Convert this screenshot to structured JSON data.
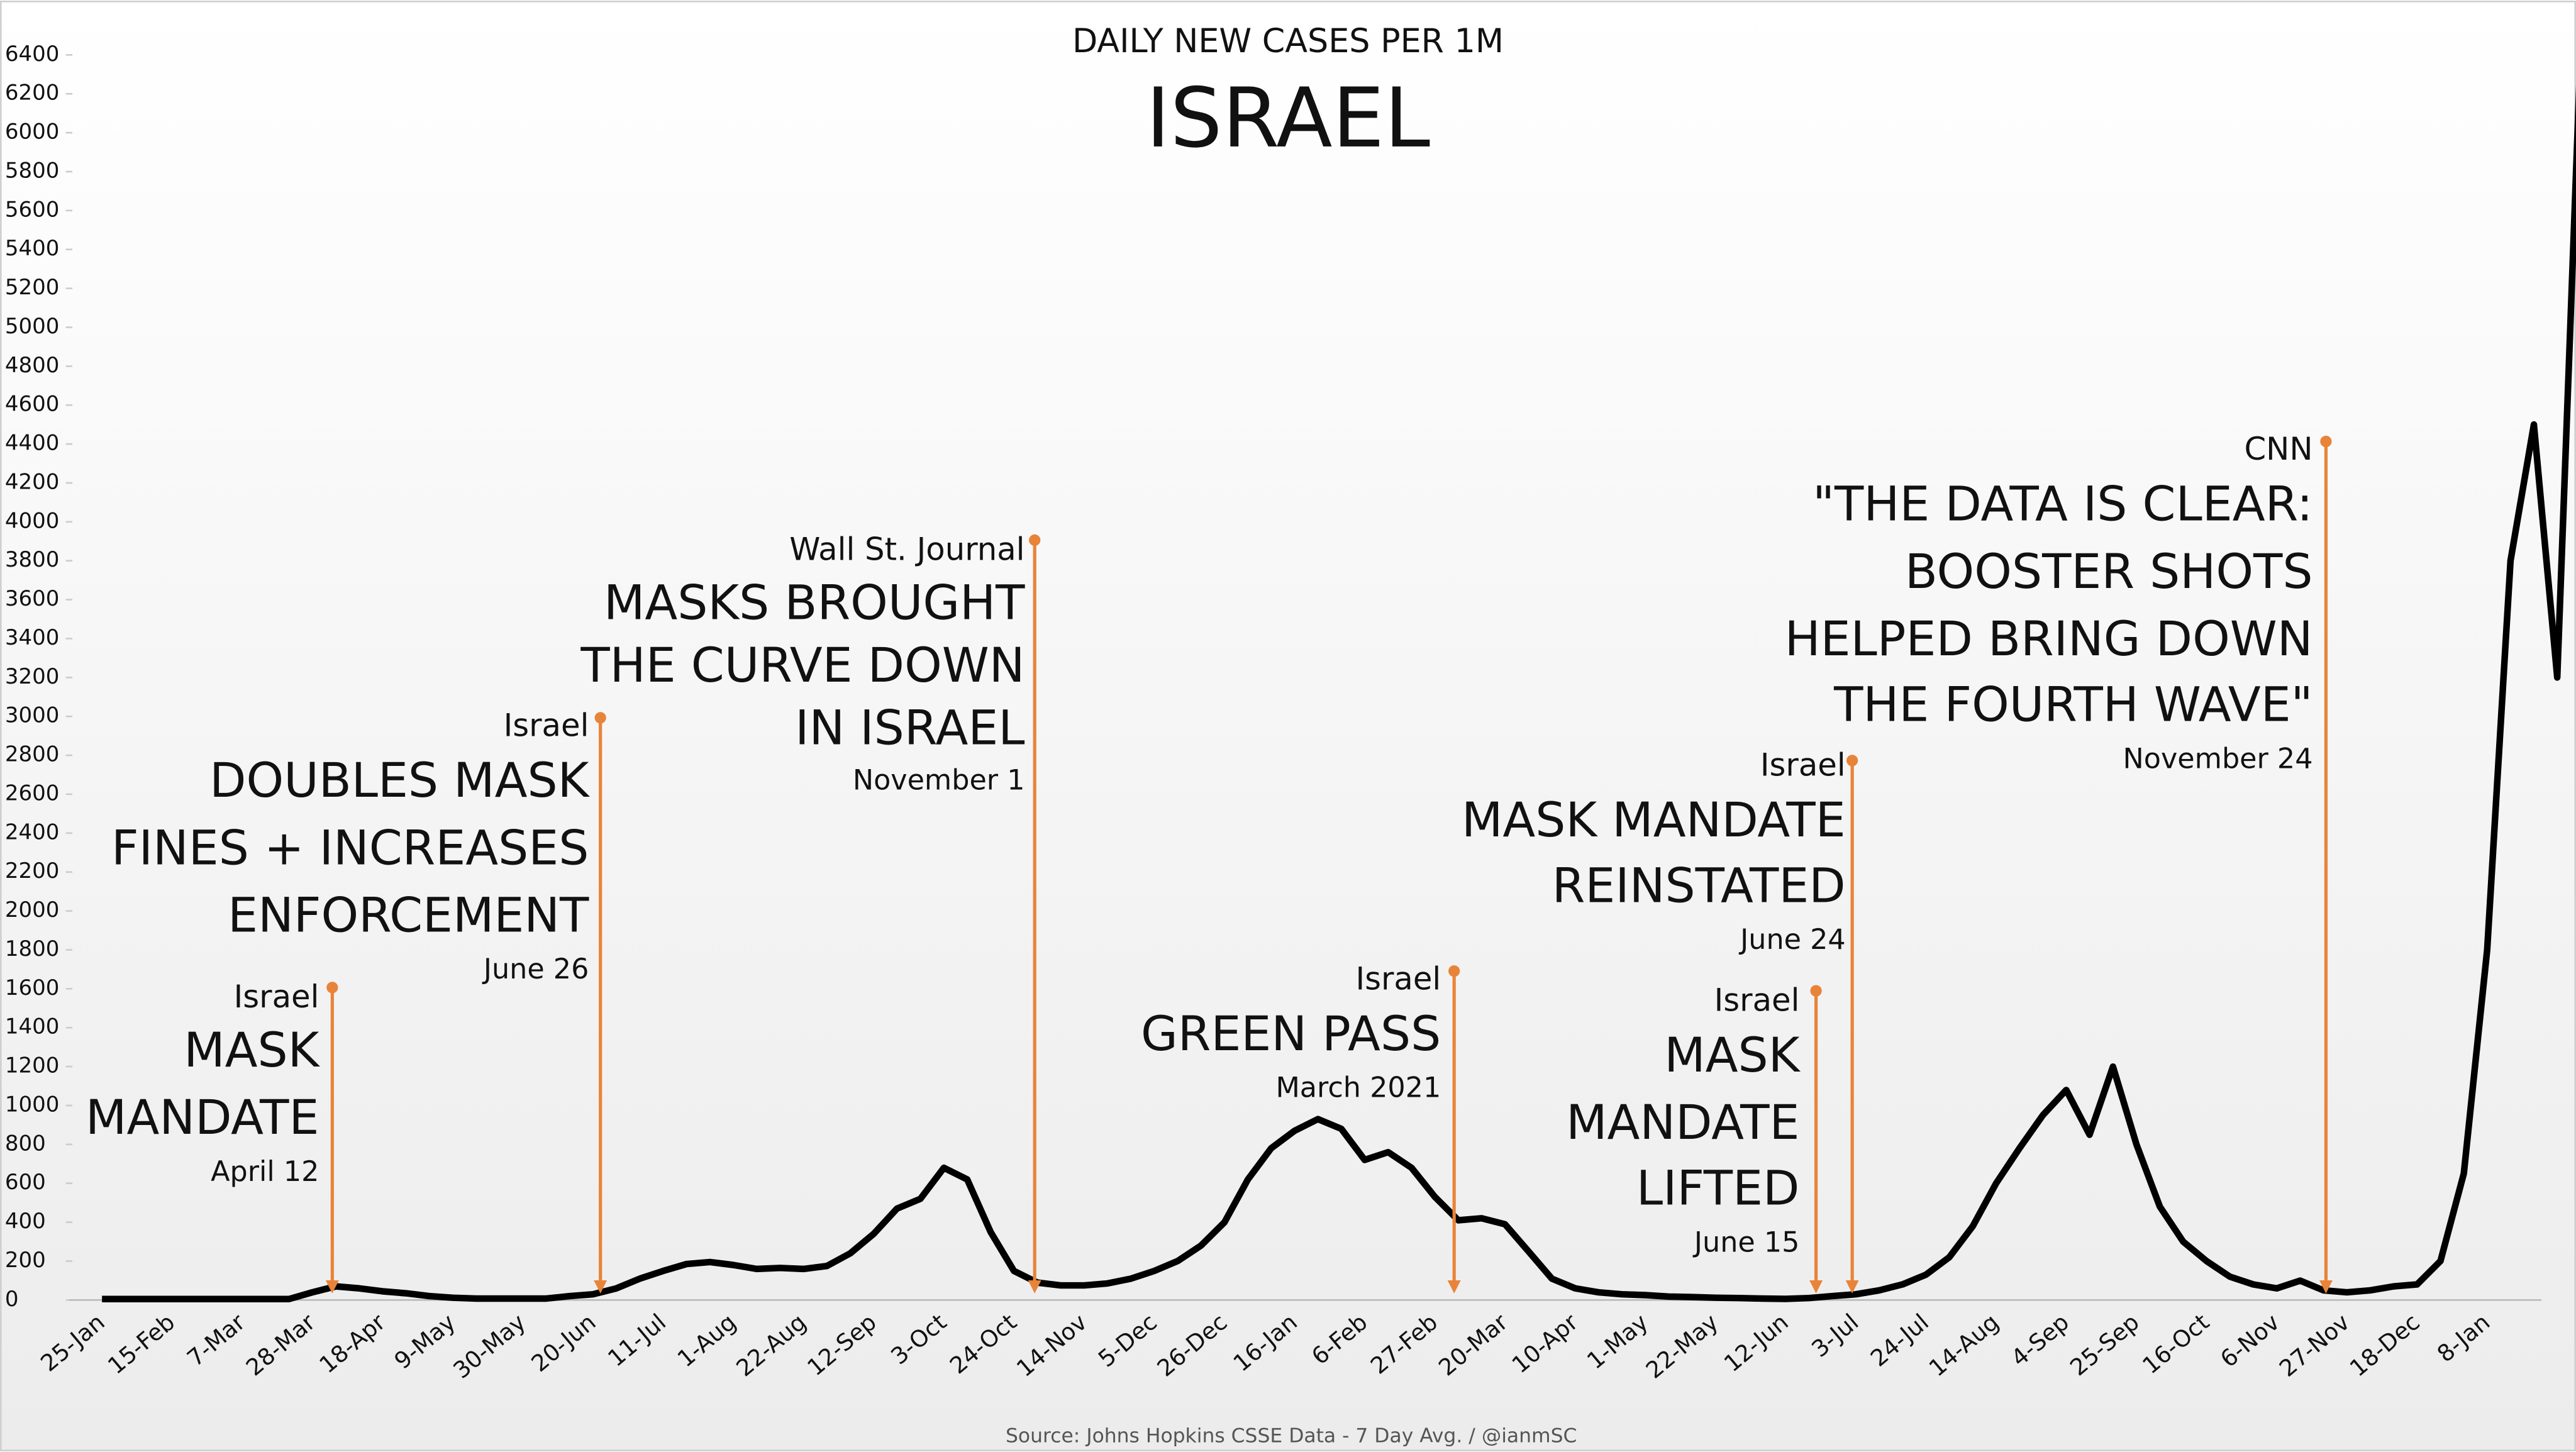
{
  "chart_data": {
    "type": "line",
    "title": "DAILY NEW CASES PER 1M",
    "subtitle": "ISRAEL",
    "source": "Source: Johns Hopkins CSSE Data - 7 Day Avg. / @ianmSC",
    "categories": [
      "25-Jan",
      null,
      null,
      "15-Feb",
      null,
      null,
      "7-Mar",
      null,
      null,
      "28-Mar",
      null,
      null,
      "18-Apr",
      null,
      null,
      "9-May",
      null,
      null,
      "30-May",
      null,
      null,
      "20-Jun",
      null,
      null,
      "11-Jul",
      null,
      null,
      "1-Aug",
      null,
      null,
      "22-Aug",
      null,
      null,
      "12-Sep",
      null,
      null,
      "3-Oct",
      null,
      null,
      "24-Oct",
      null,
      null,
      "14-Nov",
      null,
      null,
      "5-Dec",
      null,
      null,
      "26-Dec",
      null,
      null,
      "16-Jan",
      null,
      null,
      "6-Feb",
      null,
      null,
      "27-Feb",
      null,
      null,
      "20-Mar",
      null,
      null,
      "10-Apr",
      null,
      null,
      "1-May",
      null,
      null,
      "22-May",
      null,
      null,
      "12-Jun",
      null,
      null,
      "3-Jul",
      null,
      null,
      "24-Jul",
      null,
      null,
      "14-Aug",
      null,
      null,
      "4-Sep",
      null,
      null,
      "25-Sep",
      null,
      null,
      "16-Oct",
      null,
      null,
      "6-Nov",
      null,
      null,
      "27-Nov",
      null,
      null,
      "18-Dec",
      null,
      null,
      "8-Jan",
      null,
      null,
      null,
      null
    ],
    "series": [
      {
        "name": "Daily new cases per 1M",
        "color": "#000000",
        "values": [
          5,
          5,
          5,
          5,
          5,
          5,
          5,
          5,
          5,
          40,
          70,
          60,
          45,
          35,
          20,
          12,
          8,
          8,
          8,
          8,
          20,
          30,
          60,
          110,
          150,
          185,
          195,
          180,
          160,
          165,
          160,
          175,
          240,
          340,
          470,
          520,
          680,
          620,
          350,
          150,
          90,
          75,
          75,
          85,
          110,
          150,
          200,
          280,
          400,
          620,
          780,
          870,
          930,
          880,
          720,
          760,
          680,
          530,
          410,
          420,
          390,
          250,
          110,
          60,
          40,
          30,
          25,
          18,
          15,
          12,
          10,
          8,
          6,
          10,
          20,
          30,
          50,
          80,
          130,
          220,
          380,
          600,
          780,
          950,
          1080,
          850,
          1200,
          800,
          480,
          300,
          200,
          120,
          80,
          60,
          100,
          50,
          40,
          50,
          70,
          80,
          200,
          650,
          1800,
          3800,
          4500,
          3200,
          6450
        ]
      }
    ],
    "ylim": [
      0,
      6400
    ],
    "yticks": [
      0,
      200,
      400,
      600,
      800,
      1000,
      1200,
      1400,
      1600,
      1800,
      2000,
      2200,
      2400,
      2600,
      2800,
      3000,
      3200,
      3400,
      3600,
      3800,
      4000,
      4200,
      4400,
      4600,
      4800,
      5000,
      5200,
      5400,
      5600,
      5800,
      6000,
      6200,
      6400
    ],
    "annotation_color": "#e8843a",
    "annotations": [
      {
        "source": "Israel",
        "headline": [
          "MASK",
          "MANDATE"
        ],
        "date": "April 12"
      },
      {
        "source": "Israel",
        "headline": [
          "DOUBLES MASK",
          "FINES + INCREASES",
          "ENFORCEMENT"
        ],
        "date": "June 26"
      },
      {
        "source": "Wall St. Journal",
        "headline": [
          "MASKS BROUGHT",
          "THE CURVE DOWN",
          "IN ISRAEL"
        ],
        "date": "November 1"
      },
      {
        "source": "Israel",
        "headline": [
          "GREEN PASS"
        ],
        "date": "March 2021"
      },
      {
        "source": "Israel",
        "headline": [
          "MASK MANDATE",
          "REINSTATED"
        ],
        "date": "June 24"
      },
      {
        "source": "Israel",
        "headline": [
          "MASK",
          "MANDATE",
          "LIFTED"
        ],
        "date": "June 15"
      },
      {
        "source": "CNN",
        "headline": [
          "\"THE DATA IS CLEAR:",
          "BOOSTER SHOTS",
          "HELPED BRING DOWN",
          "THE FOURTH WAVE\""
        ],
        "date": "November 24"
      }
    ]
  }
}
